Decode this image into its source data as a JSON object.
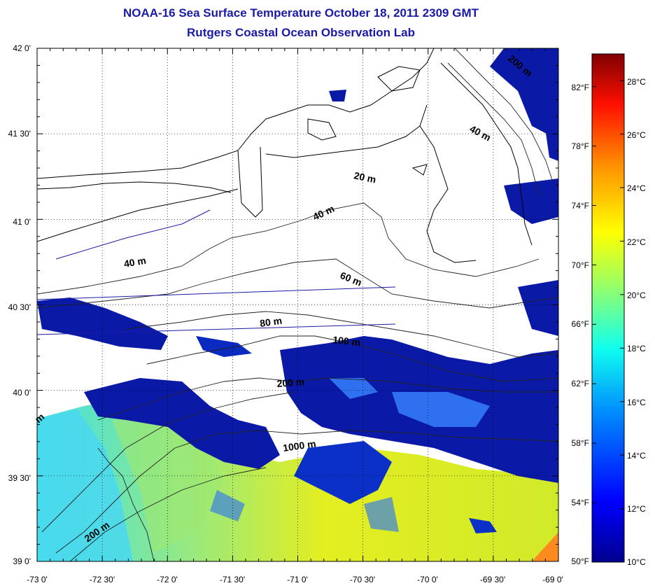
{
  "header": {
    "title": "NOAA-16 Sea Surface Temperature October 18, 2011 2309 GMT",
    "subtitle": "Rutgers Coastal Ocean Observation Lab"
  },
  "axes": {
    "x_labels": [
      "-73 0'",
      "-72 30'",
      "-72 0'",
      "-71 30'",
      "-71 0'",
      "-70 30'",
      "-70 0'",
      "-69 30'",
      "-69 0'"
    ],
    "y_labels": [
      "42 0'",
      "41 30'",
      "41 0'",
      "40 30'",
      "40 0'",
      "39 30'",
      "39 0'"
    ],
    "lon_range": [
      -73,
      -69
    ],
    "lat_range": [
      39,
      42
    ]
  },
  "depth_labels": [
    "200 m",
    "40 m",
    "20 m",
    "40 m",
    "40 m",
    "60 m",
    "80 m",
    "100 m",
    "200 m",
    "1000 m",
    "200 m",
    "m"
  ],
  "colorbar": {
    "fahrenheit": [
      "82°F",
      "78°F",
      "74°F",
      "70°F",
      "66°F",
      "62°F",
      "58°F",
      "54°F",
      "50°F"
    ],
    "celsius": [
      "28°C",
      "26°C",
      "24°C",
      "22°C",
      "20°C",
      "18°C",
      "16°C",
      "14°C",
      "12°C",
      "10°C"
    ],
    "range_c": [
      10,
      29
    ]
  },
  "colors": {
    "title": "#1a1aa6",
    "cloud": "#ffffff",
    "cold": "#0a1aa6",
    "mid": "#2e8cff",
    "shelf": "#2ee6e0",
    "warm": "#d8ee22",
    "hot": "#ffd010"
  }
}
